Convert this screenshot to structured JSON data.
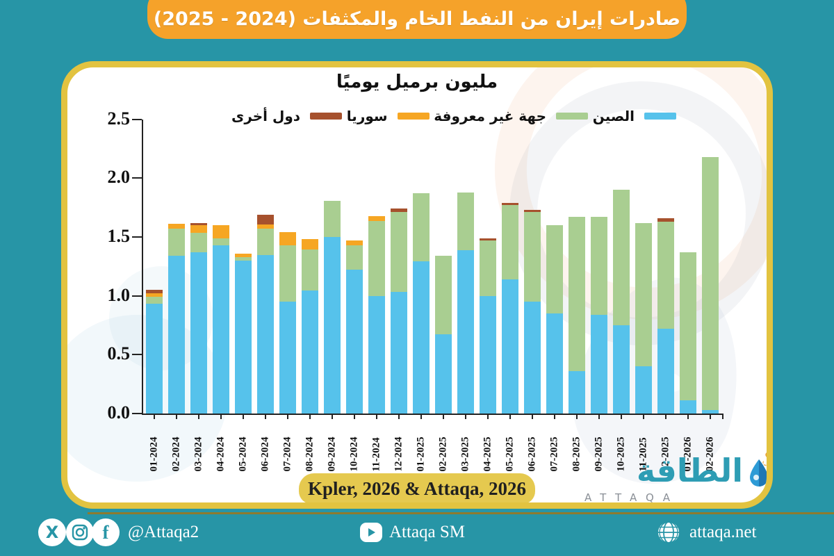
{
  "banner": {
    "title": "صادرات إيران من النفط الخام والمكثفات (2024 - 2025)"
  },
  "chart_data": {
    "type": "bar",
    "stacked": true,
    "title": "مليون برميل يوميًا",
    "xlabel": "",
    "ylabel": "",
    "ylim": [
      0,
      2.5
    ],
    "yticks": [
      "0.0",
      "0.5",
      "1.0",
      "1.5",
      "2.0",
      "2.5"
    ],
    "grid": false,
    "legend_position": "top",
    "categories": [
      "01-2024",
      "02-2024",
      "03-2024",
      "04-2024",
      "05-2024",
      "06-2024",
      "07-2024",
      "08-2024",
      "09-2024",
      "10-2024",
      "11-2024",
      "12-2024",
      "01-2025",
      "02-2025",
      "03-2025",
      "04-2025",
      "05-2025",
      "06-2025",
      "07-2025",
      "08-2025",
      "09-2025",
      "10-2025",
      "11-2025",
      "12-2025",
      "01-2026",
      "02-2026"
    ],
    "series": [
      {
        "name": "الصين",
        "color": "#56C2EB",
        "values": [
          0.93,
          1.34,
          1.37,
          1.43,
          1.3,
          1.35,
          0.95,
          1.04,
          1.5,
          1.22,
          1.0,
          1.03,
          1.29,
          0.67,
          1.39,
          1.0,
          1.14,
          0.95,
          0.85,
          0.36,
          0.84,
          0.75,
          0.4,
          0.72,
          0.11,
          0.03
        ]
      },
      {
        "name": "جهة غير معروفة",
        "color": "#A9CE91",
        "values": [
          0.06,
          0.23,
          0.17,
          0.06,
          0.03,
          0.22,
          0.48,
          0.35,
          0.31,
          0.21,
          0.64,
          0.68,
          0.58,
          0.67,
          0.49,
          0.47,
          0.63,
          0.76,
          0.75,
          1.31,
          0.83,
          1.15,
          1.22,
          0.91,
          1.26,
          2.15
        ]
      },
      {
        "name": "سوريا",
        "color": "#F6A623",
        "values": [
          0.03,
          0.04,
          0.06,
          0.11,
          0.03,
          0.04,
          0.11,
          0.09,
          0,
          0.04,
          0.04,
          0,
          0,
          0,
          0,
          0,
          0,
          0,
          0,
          0,
          0,
          0,
          0,
          0,
          0,
          0
        ]
      },
      {
        "name": "دول أخرى",
        "color": "#A6512D",
        "values": [
          0.03,
          0,
          0.02,
          0,
          0,
          0.08,
          0,
          0,
          0,
          0,
          0,
          0.03,
          0,
          0,
          0,
          0.02,
          0.02,
          0.02,
          0,
          0,
          0,
          0,
          0,
          0.03,
          0,
          0
        ]
      }
    ]
  },
  "legend": {
    "items": [
      {
        "label": "دول أخرى",
        "color": "#A6512D"
      },
      {
        "label": "سوريا",
        "color": "#F6A623"
      },
      {
        "label": "جهة غير معروفة",
        "color": "#A9CE91"
      },
      {
        "label": "الصين",
        "color": "#56C2EB"
      }
    ]
  },
  "source": {
    "label": "Kpler, 2026 & Attaqa, 2026"
  },
  "logo": {
    "arabic": "الطاقة",
    "latin": "ATTAQA"
  },
  "footer": {
    "handle": "@Attaqa2",
    "youtube_label": "Attaqa SM",
    "website": "attaqa.net",
    "x_glyph": "X",
    "fb_glyph": "f"
  },
  "colors": {
    "background_teal": "#2795A6",
    "banner_orange": "#F5A22A",
    "card_border_yellow": "#E2C340",
    "source_box_yellow": "#E5C94F",
    "logo_teal": "#2E9DB4"
  }
}
